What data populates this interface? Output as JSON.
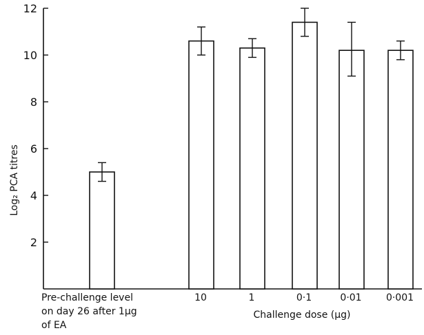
{
  "chart_data": {
    "type": "bar",
    "title": "",
    "ylabel": "Log₂ PCA titres",
    "ylim": [
      0,
      12
    ],
    "yticks": [
      2,
      4,
      6,
      8,
      10,
      12
    ],
    "grid": false,
    "xlabel": "Challenge dose (μg)",
    "categories": [
      "Pre-challenge level on day 26 after 1μg of EA",
      "10",
      "1",
      "0·1",
      "0·01",
      "0·001"
    ],
    "category_label_lines": [
      [
        "Pre-challenge level",
        "on day 26 after 1μg",
        "of EA"
      ],
      [
        "10"
      ],
      [
        "1"
      ],
      [
        "0·1"
      ],
      [
        "0·01"
      ],
      [
        "0·001"
      ]
    ],
    "values": [
      5.0,
      10.6,
      10.3,
      11.4,
      10.2,
      10.2
    ],
    "error_low": [
      4.6,
      10.0,
      9.9,
      10.8,
      9.1,
      9.8
    ],
    "error_high": [
      5.4,
      11.2,
      10.7,
      12.0,
      11.4,
      10.6
    ]
  }
}
